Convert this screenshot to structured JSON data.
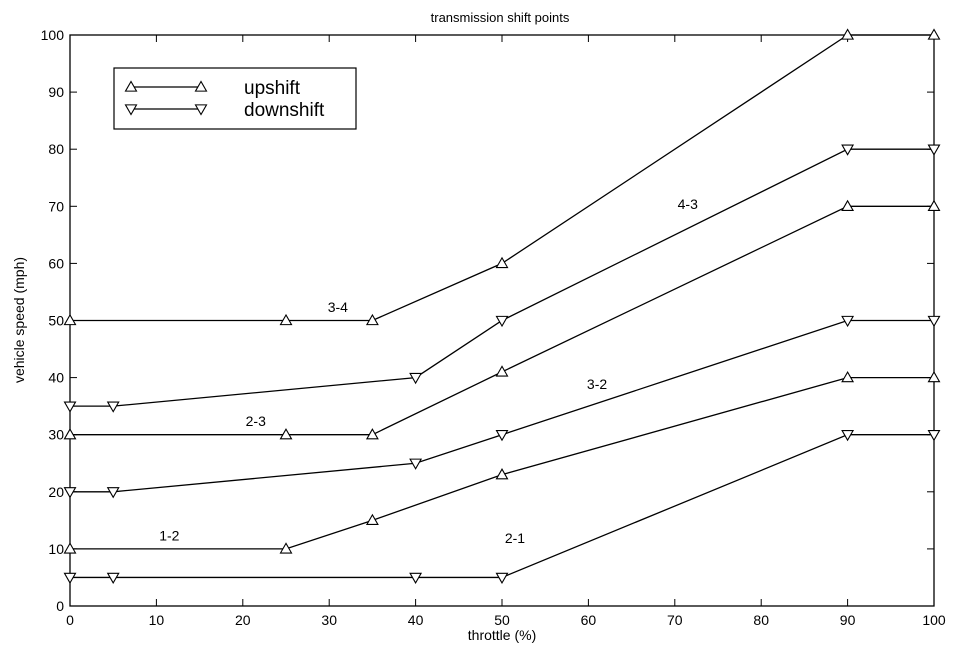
{
  "chart_data": {
    "type": "line",
    "title": "transmission shift points",
    "xlabel": "throttle (%)",
    "ylabel": "vehicle speed (mph)",
    "xlim": [
      0,
      100
    ],
    "ylim": [
      0,
      100
    ],
    "xticks": [
      0,
      10,
      20,
      30,
      40,
      50,
      60,
      70,
      80,
      90,
      100
    ],
    "yticks": [
      0,
      10,
      20,
      30,
      40,
      50,
      60,
      70,
      80,
      90,
      100
    ],
    "grid": false,
    "legend": {
      "position": "top-left",
      "entries": [
        {
          "label": "upshift",
          "marker": "triangle-up"
        },
        {
          "label": "downshift",
          "marker": "triangle-down"
        }
      ]
    },
    "series": [
      {
        "marker": "triangle-up",
        "x": [
          0,
          25,
          35,
          50,
          90,
          100
        ],
        "y": [
          10,
          10,
          15,
          23,
          40,
          40
        ]
      },
      {
        "marker": "triangle-up",
        "x": [
          0,
          25,
          35,
          50,
          90,
          100
        ],
        "y": [
          30,
          30,
          30,
          41,
          70,
          70
        ]
      },
      {
        "marker": "triangle-up",
        "x": [
          0,
          25,
          35,
          50,
          90,
          100
        ],
        "y": [
          50,
          50,
          50,
          60,
          100,
          100
        ]
      },
      {
        "marker": "triangle-down",
        "x": [
          0,
          5,
          40,
          50,
          90,
          100
        ],
        "y": [
          5,
          5,
          5,
          5,
          30,
          30
        ]
      },
      {
        "marker": "triangle-down",
        "x": [
          0,
          5,
          40,
          50,
          90,
          100
        ],
        "y": [
          20,
          20,
          25,
          30,
          50,
          50
        ]
      },
      {
        "marker": "triangle-down",
        "x": [
          0,
          5,
          40,
          50,
          90,
          100
        ],
        "y": [
          35,
          35,
          40,
          50,
          80,
          80
        ]
      }
    ],
    "annotations": [
      {
        "text": "1-2",
        "x": 11.5,
        "y": 11.5
      },
      {
        "text": "2-3",
        "x": 21.5,
        "y": 31.5
      },
      {
        "text": "3-4",
        "x": 31,
        "y": 51.5
      },
      {
        "text": "2-1",
        "x": 51.5,
        "y": 11
      },
      {
        "text": "3-2",
        "x": 61,
        "y": 38
      },
      {
        "text": "4-3",
        "x": 71.5,
        "y": 69.5
      }
    ]
  }
}
